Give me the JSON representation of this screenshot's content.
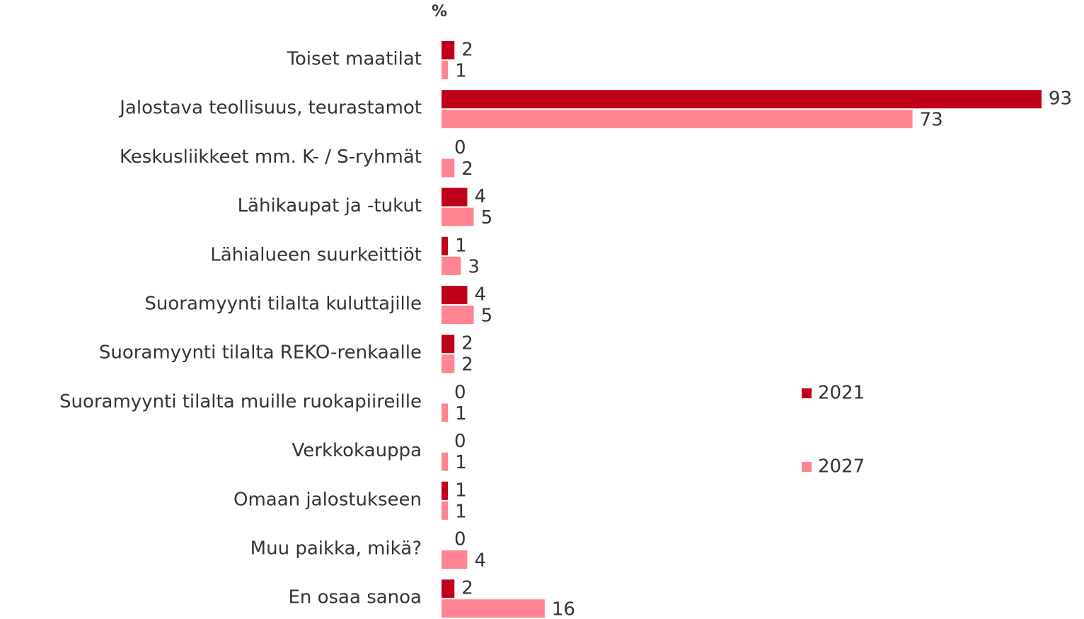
{
  "chart_data": {
    "type": "bar",
    "orientation": "horizontal",
    "unit_label": "%",
    "categories": [
      "Toiset maatilat",
      "Jalostava teollisuus, teurastamot",
      "Keskusliikkeet mm. K- / S-ryhmät",
      "Lähikaupat ja -tukut",
      "Lähialueen suurkeittiöt",
      "Suoramyynti tilalta kuluttajille",
      "Suoramyynti tilalta REKO-renkaalle",
      "Suoramyynti tilalta muille ruokapiireille",
      "Verkkokauppa",
      "Omaan jalostukseen",
      "Muu paikka, mikä?",
      "En osaa sanoa"
    ],
    "series": [
      {
        "name": "2021",
        "color": "#c0001a",
        "values": [
          2,
          93,
          0,
          4,
          1,
          4,
          2,
          0,
          0,
          1,
          0,
          2
        ]
      },
      {
        "name": "2027",
        "color": "#ff8593",
        "values": [
          1,
          73,
          2,
          5,
          3,
          5,
          2,
          1,
          1,
          1,
          4,
          16
        ]
      }
    ],
    "legend": "right"
  }
}
